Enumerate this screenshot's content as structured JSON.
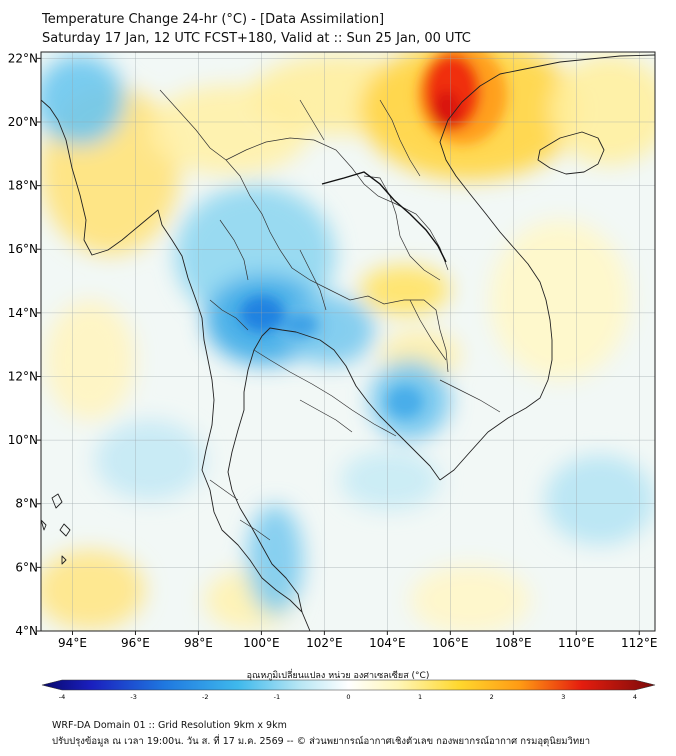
{
  "title_line1": "Temperature Change 24-hr (°C) - [Data Assimilation]",
  "title_line2": "Saturday 17 Jan, 12 UTC FCST+180, Valid at :: Sun 25 Jan, 00 UTC",
  "map": {
    "lon_range": [
      93,
      112.5
    ],
    "lat_range": [
      4,
      22.2
    ],
    "lon_ticks": [
      "94°E",
      "96°E",
      "98°E",
      "100°E",
      "102°E",
      "104°E",
      "106°E",
      "108°E",
      "110°E",
      "112°E"
    ],
    "lat_ticks": [
      "4°N",
      "6°N",
      "8°N",
      "10°N",
      "12°N",
      "14°N",
      "16°N",
      "18°N",
      "20°N",
      "22°N"
    ],
    "grid": true
  },
  "colorbar": {
    "label": "อุณหภูมิเปลี่ยนแปลง หน่วย องศาเซลเซียส (°C)",
    "ticks": [
      "-4",
      "-3",
      "-2",
      "-1",
      "0",
      "1",
      "2",
      "3",
      "4"
    ],
    "min": -4,
    "max": 4,
    "colors": [
      "#08086b",
      "#1a2fd6",
      "#1f8fe6",
      "#49cbee",
      "#e8f6f8",
      "#ffffff",
      "#fff6b8",
      "#ffd12e",
      "#ff8f14",
      "#e51d0e",
      "#7a0a0a"
    ]
  },
  "footer_line1": "WRF-DA Domain 01 :: Grid Resolution 9km x 9km",
  "footer_line2": "ปรับปรุงข้อมูล ณ เวลา 19:00น. วัน ส. ที่ 17 ม.ค. 2569 -- © ส่วนพยากรณ์อากาศเชิงตัวเลข กองพยากรณ์อากาศ กรมอุตุนิยมวิทยา"
}
